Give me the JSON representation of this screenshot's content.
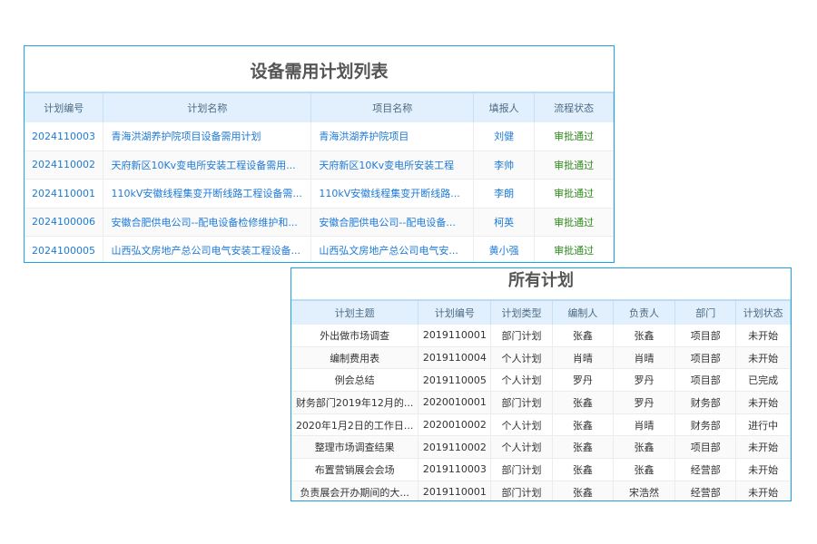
{
  "demand_panel": {
    "title": "设备需用计划列表",
    "columns": [
      "计划编号",
      "计划名称",
      "项目名称",
      "填报人",
      "流程状态"
    ],
    "rows": [
      [
        "2024110003",
        "青海洪湖养护院项目设备需用计划",
        "青海洪湖养护院项目",
        "刘健",
        "审批通过"
      ],
      [
        "2024110002",
        "天府新区10Kv变电所安装工程设备需用...",
        "天府新区10Kv变电所安装工程",
        "李帅",
        "审批通过"
      ],
      [
        "2024110001",
        "110kV安徽线程集变开断线路工程设备需...",
        "110kV安徽线程集变开断线路...",
        "李朗",
        "审批通过"
      ],
      [
        "2024100006",
        "安徽合肥供电公司--配电设备检修维护和...",
        "安徽合肥供电公司--配电设备...",
        "柯英",
        "审批通过"
      ],
      [
        "2024100005",
        "山西弘文房地产总公司电气安装工程设备...",
        "山西弘文房地产总公司电气安...",
        "黄小强",
        "审批通过"
      ]
    ],
    "colors": {
      "border": "#1aa3e8",
      "link": "#1e7ad6",
      "status_ok": "#2f8a1e"
    }
  },
  "plans_panel": {
    "title": "所有计划",
    "columns": [
      "计划主题",
      "计划编号",
      "计划类型",
      "编制人",
      "负责人",
      "部门",
      "计划状态"
    ],
    "rows": [
      [
        "外出做市场调查",
        "2019110001",
        "部门计划",
        "张鑫",
        "张鑫",
        "项目部",
        "未开始"
      ],
      [
        "编制费用表",
        "2019110004",
        "个人计划",
        "肖晴",
        "肖晴",
        "项目部",
        "未开始"
      ],
      [
        "例会总结",
        "2019110005",
        "个人计划",
        "罗丹",
        "罗丹",
        "项目部",
        "已完成"
      ],
      [
        "财务部门2019年12月的...",
        "2020010001",
        "部门计划",
        "张鑫",
        "罗丹",
        "财务部",
        "未开始"
      ],
      [
        "2020年1月2日的工作日...",
        "2020010002",
        "个人计划",
        "张鑫",
        "肖晴",
        "财务部",
        "进行中"
      ],
      [
        "整理市场调查结果",
        "2019110002",
        "个人计划",
        "张鑫",
        "张鑫",
        "项目部",
        "未开始"
      ],
      [
        "布置营销展会会场",
        "2019110003",
        "部门计划",
        "张鑫",
        "张鑫",
        "经营部",
        "未开始"
      ],
      [
        "负责展会开办期间的大...",
        "2019110001",
        "部门计划",
        "张鑫",
        "宋浩然",
        "经营部",
        "未开始"
      ]
    ]
  }
}
